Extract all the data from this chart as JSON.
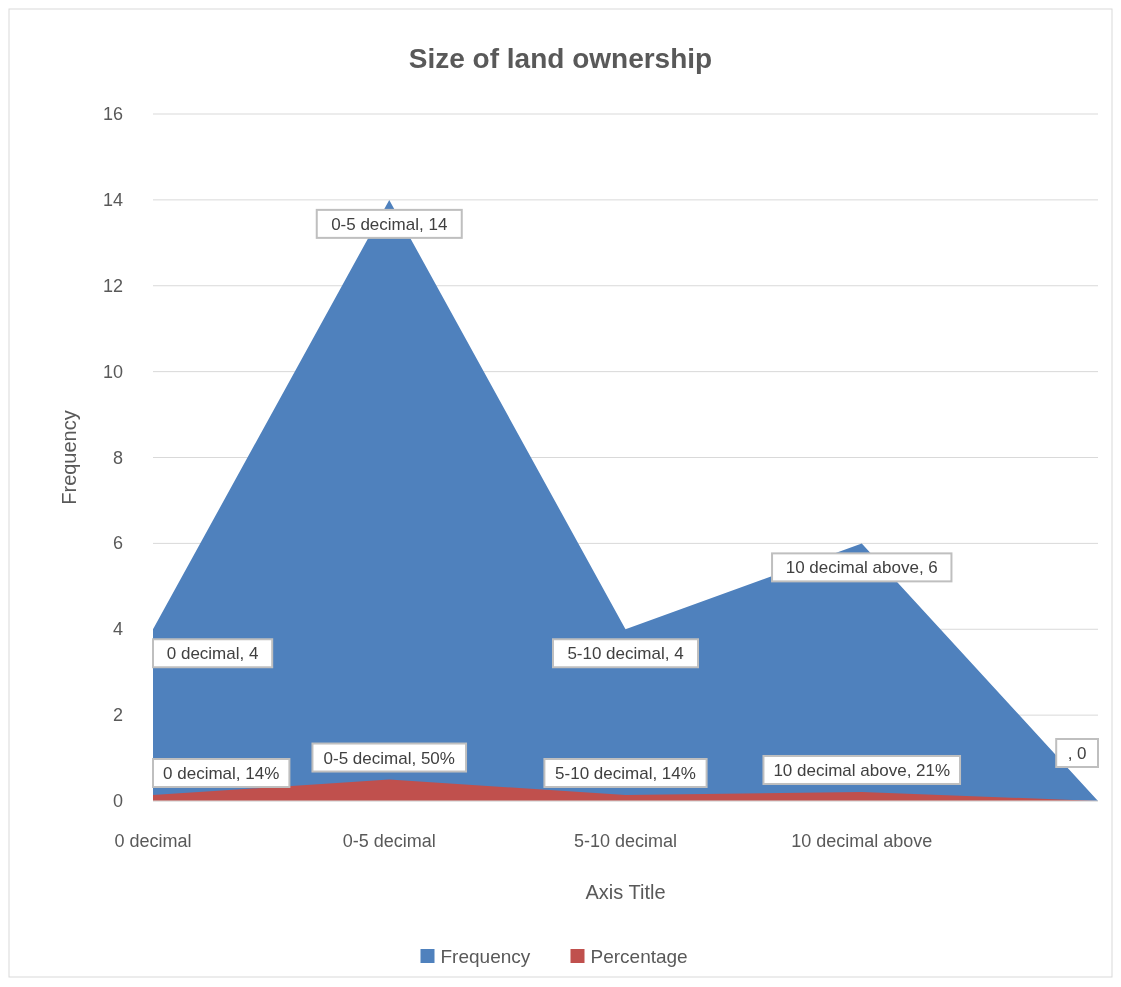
{
  "chart_data": {
    "type": "area",
    "title": "Size of land ownership",
    "xlabel": "Axis Title",
    "ylabel": "Frequency",
    "categories": [
      "0 decimal",
      "0-5 decimal",
      "5-10 decimal",
      "10 decimal above",
      null
    ],
    "series": [
      {
        "name": "Frequency",
        "color": "#4f81bd",
        "values": [
          4,
          14,
          4,
          6,
          0
        ],
        "value_labels": [
          "0 decimal, 4",
          "0-5 decimal, 14",
          "5-10 decimal, 4",
          "10 decimal above, 6",
          ", 0"
        ]
      },
      {
        "name": "Percentage",
        "color": "#c0504d",
        "values": [
          0.14,
          0.5,
          0.14,
          0.21,
          0
        ],
        "value_labels": [
          "0 decimal, 14%",
          "0-5 decimal, 50%",
          "5-10 decimal, 14%",
          "10 decimal above, 21%",
          null
        ]
      }
    ],
    "ylim": [
      0,
      16
    ],
    "yticks": [
      0,
      2,
      4,
      6,
      8,
      10,
      12,
      14,
      16
    ],
    "grid": "y",
    "legend": "bottom"
  }
}
